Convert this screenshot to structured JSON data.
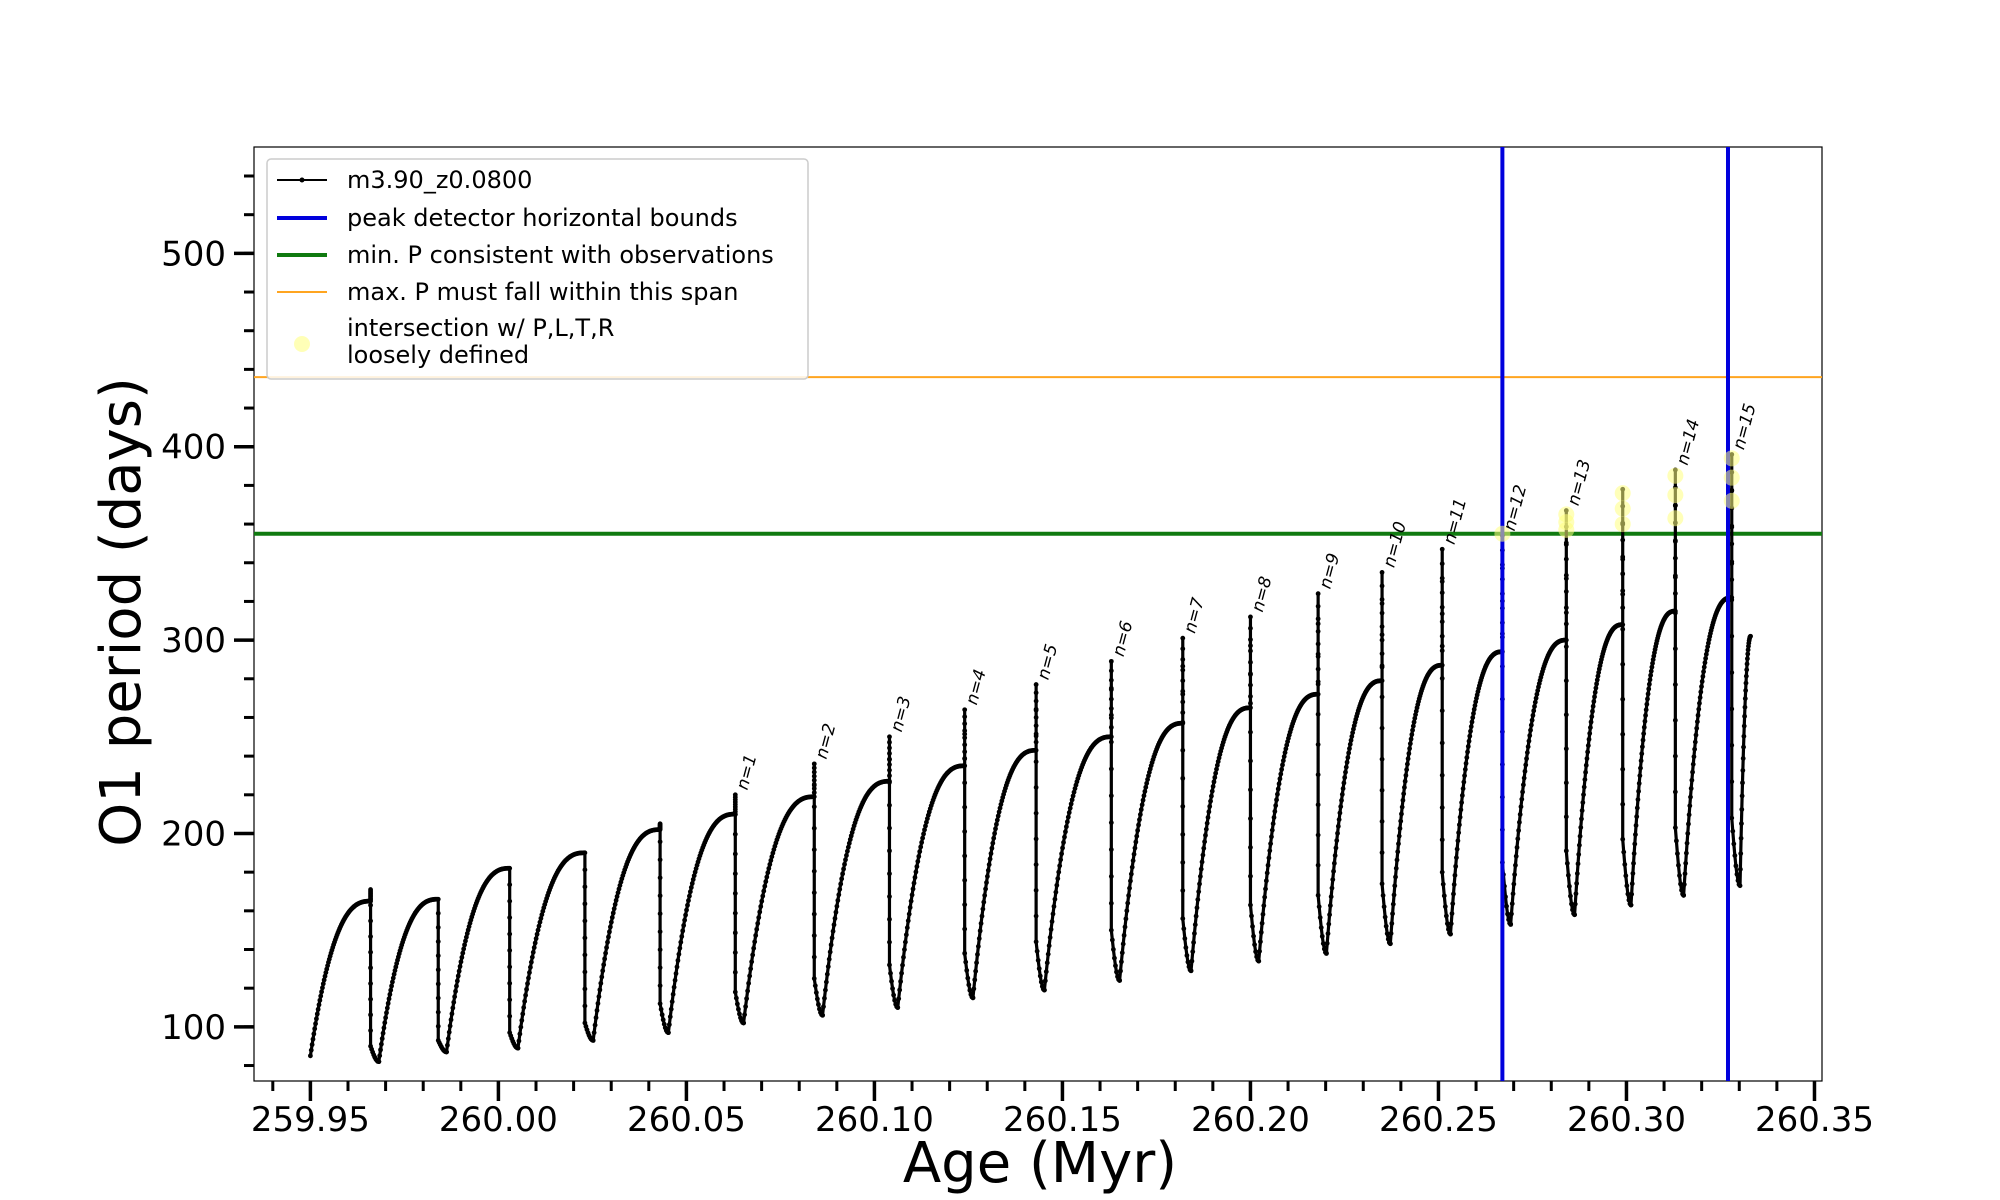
{
  "chart_data": {
    "type": "line",
    "xlabel": "Age (Myr)",
    "ylabel": "O1 period (days)",
    "xlim": [
      259.935,
      260.352
    ],
    "ylim": [
      72,
      555
    ],
    "x_ticks": [
      259.95,
      260.0,
      260.05,
      260.1,
      260.15,
      260.2,
      260.25,
      260.3,
      260.35
    ],
    "x_tick_labels": [
      "259.95",
      "260.00",
      "260.05",
      "260.10",
      "260.15",
      "260.20",
      "260.25",
      "260.30",
      "260.35"
    ],
    "y_ticks": [
      100,
      200,
      300,
      400,
      500
    ],
    "y_tick_labels": [
      "100",
      "200",
      "300",
      "400",
      "500"
    ],
    "y_minor_step": 20,
    "x_minor_step": 0.01,
    "grid": false,
    "legend_position": "top-left",
    "legend": [
      {
        "label": "m3.90_z0.0800",
        "style": "line-marker",
        "color": "#000000"
      },
      {
        "label": "peak detector horizontal bounds",
        "style": "line",
        "color": "#0000dd"
      },
      {
        "label": "min. P consistent with observations",
        "style": "line",
        "color": "#107a10"
      },
      {
        "label": "max. P must fall within this span",
        "style": "line",
        "color": "#ffa520"
      },
      {
        "label_lines": [
          "intersection w/ P,L,T,R",
          "loosely defined"
        ],
        "style": "marker",
        "color": "#ffff99"
      }
    ],
    "series": [
      {
        "name": "m3.90_z0.0800",
        "color": "#000000",
        "start": {
          "x": 259.95,
          "y": 85
        },
        "end_x": 260.333,
        "cycles": [
          {
            "x": 259.966,
            "pre": 165,
            "spike": 171,
            "drop": 90,
            "min": 82
          },
          {
            "x": 259.984,
            "pre": 166,
            "spike": 166,
            "drop": 93,
            "min": 87
          },
          {
            "x": 260.003,
            "pre": 182,
            "spike": 182,
            "drop": 97,
            "min": 89
          },
          {
            "x": 260.023,
            "pre": 190,
            "spike": 190,
            "drop": 102,
            "min": 93
          },
          {
            "x": 260.043,
            "pre": 202,
            "spike": 205,
            "drop": 112,
            "min": 97
          },
          {
            "x": 260.063,
            "pre": 210,
            "spike": 220,
            "drop": 118,
            "min": 102
          },
          {
            "x": 260.084,
            "pre": 219,
            "spike": 236,
            "drop": 125,
            "min": 106
          },
          {
            "x": 260.104,
            "pre": 227,
            "spike": 250,
            "drop": 132,
            "min": 110
          },
          {
            "x": 260.124,
            "pre": 235,
            "spike": 264,
            "drop": 138,
            "min": 115
          },
          {
            "x": 260.143,
            "pre": 243,
            "spike": 277,
            "drop": 144,
            "min": 119
          },
          {
            "x": 260.163,
            "pre": 250,
            "spike": 289,
            "drop": 150,
            "min": 124
          },
          {
            "x": 260.182,
            "pre": 257,
            "spike": 301,
            "drop": 156,
            "min": 129
          },
          {
            "x": 260.2,
            "pre": 265,
            "spike": 312,
            "drop": 163,
            "min": 134
          },
          {
            "x": 260.218,
            "pre": 272,
            "spike": 324,
            "drop": 168,
            "min": 138
          },
          {
            "x": 260.235,
            "pre": 279,
            "spike": 335,
            "drop": 174,
            "min": 143
          },
          {
            "x": 260.251,
            "pre": 287,
            "spike": 347,
            "drop": 180,
            "min": 148
          },
          {
            "x": 260.267,
            "pre": 294,
            "spike": 354,
            "drop": 185,
            "min": 153
          },
          {
            "x": 260.284,
            "pre": 300,
            "spike": 367,
            "drop": 191,
            "min": 158
          },
          {
            "x": 260.299,
            "pre": 308,
            "spike": 378,
            "drop": 197,
            "min": 163
          },
          {
            "x": 260.313,
            "pre": 315,
            "spike": 388,
            "drop": 203,
            "min": 168
          },
          {
            "x": 260.328,
            "pre": 322,
            "spike": 396,
            "drop": 208,
            "min": 173
          }
        ],
        "end_y": 302
      }
    ],
    "vertical_lines": [
      {
        "x": 260.267,
        "color": "#0000dd"
      },
      {
        "x": 260.327,
        "color": "#0000dd"
      }
    ],
    "horizontal_lines": [
      {
        "y": 355,
        "color": "#107a10"
      },
      {
        "y": 436,
        "color": "#ffa520"
      }
    ],
    "intersection_points": [
      {
        "x": 260.267,
        "y": 355
      },
      {
        "x": 260.284,
        "y": 357
      },
      {
        "x": 260.284,
        "y": 361
      },
      {
        "x": 260.284,
        "y": 365
      },
      {
        "x": 260.299,
        "y": 360
      },
      {
        "x": 260.299,
        "y": 368
      },
      {
        "x": 260.299,
        "y": 376
      },
      {
        "x": 260.313,
        "y": 363
      },
      {
        "x": 260.313,
        "y": 375
      },
      {
        "x": 260.313,
        "y": 385
      },
      {
        "x": 260.328,
        "y": 372
      },
      {
        "x": 260.328,
        "y": 384
      },
      {
        "x": 260.328,
        "y": 394
      }
    ],
    "annotations": [
      {
        "text": "n=1",
        "x": 260.063,
        "y": 220
      },
      {
        "text": "n=2",
        "x": 260.084,
        "y": 236
      },
      {
        "text": "n=3",
        "x": 260.104,
        "y": 250
      },
      {
        "text": "n=4",
        "x": 260.124,
        "y": 264
      },
      {
        "text": "n=5",
        "x": 260.143,
        "y": 277
      },
      {
        "text": "n=6",
        "x": 260.163,
        "y": 289
      },
      {
        "text": "n=7",
        "x": 260.182,
        "y": 301
      },
      {
        "text": "n=8",
        "x": 260.2,
        "y": 312
      },
      {
        "text": "n=9",
        "x": 260.218,
        "y": 324
      },
      {
        "text": "n=10",
        "x": 260.235,
        "y": 335
      },
      {
        "text": "n=11",
        "x": 260.251,
        "y": 347
      },
      {
        "text": "n=12",
        "x": 260.267,
        "y": 354
      },
      {
        "text": "n=13",
        "x": 260.284,
        "y": 367
      },
      {
        "text": "n=14",
        "x": 260.313,
        "y": 388
      },
      {
        "text": "n=15",
        "x": 260.328,
        "y": 396
      }
    ]
  }
}
